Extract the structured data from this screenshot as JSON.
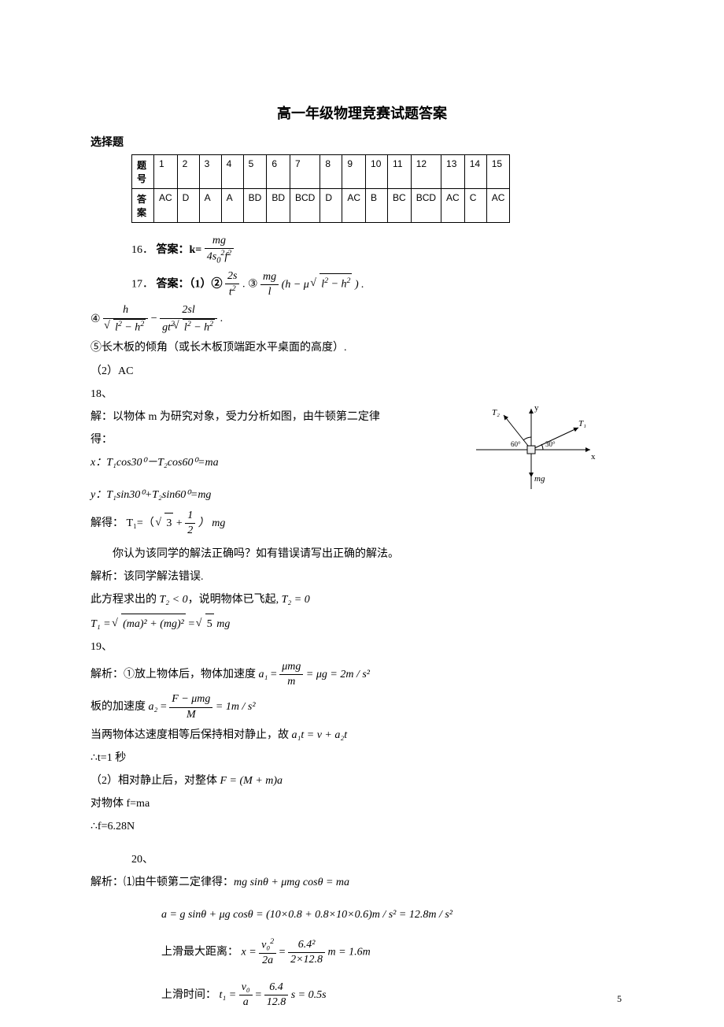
{
  "title": "高一年级物理竞赛试题答案",
  "section_label": "选择题",
  "table_header_row_label": "题号",
  "table_answer_row_label": "答案",
  "columns": [
    "1",
    "2",
    "3",
    "4",
    "5",
    "6",
    "7",
    "8",
    "9",
    "10",
    "11",
    "12",
    "13",
    "14",
    "15"
  ],
  "answers": [
    "AC",
    "D",
    "A",
    "A",
    "BD",
    "BD",
    "BCD",
    "D",
    "AC",
    "B",
    "BC",
    "BCD",
    "AC",
    "C",
    "AC"
  ],
  "q16": {
    "prefix": "16．",
    "label": "答案：k=",
    "num": "mg",
    "den_parts": {
      "a": "4s",
      "b": "0",
      "c": "2",
      "d": "f",
      "e": "2"
    }
  },
  "q17": {
    "prefix": "17．",
    "label": "答案：（1）②",
    "part2_num": "2s",
    "part2_den": "t",
    "part2_den_exp": "2",
    "dot": ".  ③",
    "coef_num": "mg",
    "coef_den": "l",
    "open": "(",
    "h": "h",
    "minus": " − μ",
    "sqrt_a": "l",
    "sqrt_b": "2",
    "sqrt_c": " − h",
    "sqrt_d": "2",
    "close": ") .",
    "line2_circ": "④",
    "l2_t1_num": "h",
    "l2_t1_den_a": "l",
    "l2_t1_den_b": "2",
    "l2_t1_den_c": " − h",
    "l2_t1_den_d": "2",
    "l2_minus": " − ",
    "l2_t2_num": "2sl",
    "l2_t2_den_a": "gt",
    "l2_t2_den_b": "2",
    "l2_t2_den_sqrt_a": "l",
    "l2_t2_den_sqrt_b": "2",
    "l2_t2_den_sqrt_c": " − h",
    "l2_t2_den_sqrt_d": "2",
    "l2_end": ".",
    "line3": "⑤长木板的倾角（或长木板顶端距水平桌面的高度）.",
    "line4": "（2）AC"
  },
  "q18": {
    "heading": "18、",
    "l1": "解：以物体 m 为研究对象，受力分析如图，由牛顿第二定律",
    "l2": "得：",
    "lx": "x：T₁cos30⁰－T₂cos60⁰=ma",
    "ly": "y：T₁sin30⁰+T₂sin60⁰=mg",
    "solve": "解得：  T₁=（",
    "sqrt3": "3",
    "plus": " + ",
    "half_num": "1",
    "half_den": "2",
    "close": "） mg",
    "q": "        你认为该同学的解法正确吗？如有错误请写出正确的解法。",
    "ans": "解析：该同学解法错误.",
    "l3a": "此方程求出的 ",
    "t2": "T₂ < 0",
    "l3b": "，说明物体已飞起, ",
    "t2_0": "T₂ = 0",
    "t1eq_a": "T₁ = ",
    "t1eq_rad": "(ma)² + (mg)²",
    "t1eq_b": " = ",
    "sqrt5": "5",
    "t1eq_c": "mg"
  },
  "diagram": {
    "T2": "T₂",
    "T1": "T₁",
    "y": "y",
    "x": "x",
    "mg": "mg",
    "a60": "60°",
    "a30": "30°",
    "line_color": "#000",
    "text_size": 11
  },
  "q19": {
    "heading": "19、",
    "l1": "解析：①放上物体后，物体加速度  ",
    "a1": "a₁",
    "eq": " = ",
    "num1": "μmg",
    "den1": "m",
    "eq2": " = μg = 2m / s²",
    "l2": "板的加速度      ",
    "a2": "a₂",
    "eq3": " = ",
    "num2": "F − μmg",
    "den2": "M",
    "eq4": " = 1m / s²",
    "l3": "当两物体达速度相等后保持相对静止，故 ",
    "rel": "a₁t = v + a₂t",
    "l4": "∴t=1 秒",
    "l5": "（2）相对静止后，对整体   ",
    "whole": "F = (M + m)a",
    "l6": "对物体 f=ma",
    "l7": "∴f=6.28N"
  },
  "q20": {
    "heading": "20、",
    "l1": "解析：⑴由牛顿第二定律得：",
    "eq1": "mg sinθ + μmg cosθ = ma",
    "l2": "a = g sinθ + μg cosθ = (10×0.8 + 0.8×10×0.6)m / s² = 12.8m / s²",
    "l3": "上滑最大距离：",
    "x": "x = ",
    "num_a": "v₀",
    "num_b": "2",
    "den3": "2a",
    "eq3": " = ",
    "num4": "6.4²",
    "den4": "2×12.8",
    "eq4": "m = 1.6m",
    "l4": "上滑时间：",
    "t1": "t₁ = ",
    "num5": "v₀",
    "den5": "a",
    "eq5": " = ",
    "num6": "6.4",
    "den6": "12.8",
    "eq6": "s = 0.5s"
  },
  "page_number": "5"
}
